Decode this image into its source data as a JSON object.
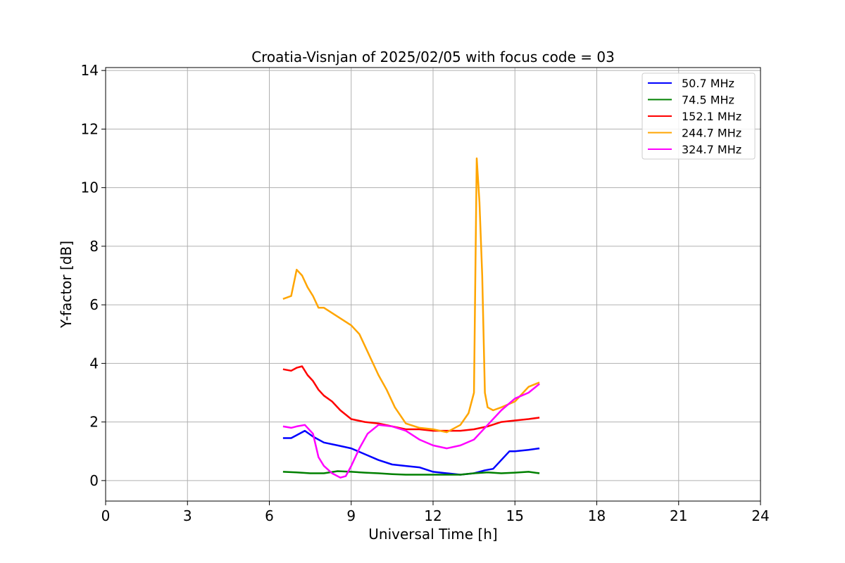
{
  "chart_data": {
    "type": "line",
    "title": "Croatia-Visnjan of 2025/02/05 with focus code = 03",
    "xlabel": "Universal Time [h]",
    "ylabel": "Y-factor [dB]",
    "xlim": [
      0,
      24
    ],
    "ylim": [
      -0.7,
      14.1
    ],
    "xticks": [
      0,
      3,
      6,
      9,
      12,
      15,
      18,
      21,
      24
    ],
    "yticks": [
      0,
      2,
      4,
      6,
      8,
      10,
      12,
      14
    ],
    "xtick_labels": [
      "0",
      "3",
      "6",
      "9",
      "12",
      "15",
      "18",
      "21",
      "24"
    ],
    "ytick_labels": [
      "0",
      "2",
      "4",
      "6",
      "8",
      "10",
      "12",
      "14"
    ],
    "grid": true,
    "legend_position": "top-right",
    "series": [
      {
        "name": " 50.7 MHz",
        "color": "#0000ff",
        "x": [
          6.5,
          6.8,
          7.0,
          7.3,
          7.6,
          8.0,
          8.5,
          9.0,
          9.5,
          10.0,
          10.5,
          11.0,
          11.5,
          12.0,
          12.5,
          13.0,
          13.5,
          13.9,
          14.2,
          14.5,
          14.8,
          15.0,
          15.5,
          15.9
        ],
        "y": [
          1.45,
          1.45,
          1.55,
          1.7,
          1.5,
          1.3,
          1.2,
          1.1,
          0.9,
          0.7,
          0.55,
          0.5,
          0.45,
          0.3,
          0.25,
          0.2,
          0.25,
          0.35,
          0.4,
          0.7,
          1.0,
          1.0,
          1.05,
          1.1
        ]
      },
      {
        "name": " 74.5 MHz",
        "color": "#008000",
        "x": [
          6.5,
          7.0,
          7.5,
          8.0,
          8.5,
          9.0,
          9.5,
          10.0,
          10.5,
          11.0,
          11.5,
          12.0,
          12.5,
          13.0,
          13.5,
          14.0,
          14.5,
          15.0,
          15.5,
          15.9
        ],
        "y": [
          0.3,
          0.28,
          0.25,
          0.25,
          0.32,
          0.3,
          0.27,
          0.25,
          0.22,
          0.2,
          0.2,
          0.2,
          0.2,
          0.2,
          0.25,
          0.28,
          0.25,
          0.27,
          0.3,
          0.25
        ]
      },
      {
        "name": " 152.1 MHz",
        "color": "#ff0000",
        "x": [
          6.5,
          6.8,
          7.0,
          7.2,
          7.4,
          7.6,
          7.8,
          8.0,
          8.3,
          8.6,
          9.0,
          9.5,
          10.0,
          10.5,
          11.0,
          11.5,
          12.0,
          12.5,
          13.0,
          13.5,
          14.0,
          14.5,
          15.0,
          15.5,
          15.9
        ],
        "y": [
          3.8,
          3.75,
          3.85,
          3.9,
          3.6,
          3.4,
          3.1,
          2.9,
          2.7,
          2.4,
          2.1,
          2.0,
          1.95,
          1.85,
          1.75,
          1.75,
          1.7,
          1.7,
          1.7,
          1.75,
          1.85,
          2.0,
          2.05,
          2.1,
          2.15
        ]
      },
      {
        "name": " 244.7 MHz",
        "color": "#ffa500",
        "x": [
          6.5,
          6.8,
          7.0,
          7.2,
          7.4,
          7.6,
          7.8,
          8.0,
          8.5,
          9.0,
          9.3,
          9.6,
          10.0,
          10.3,
          10.6,
          11.0,
          11.5,
          12.0,
          12.5,
          13.0,
          13.3,
          13.5,
          13.6,
          13.7,
          13.8,
          13.9,
          14.0,
          14.2,
          14.5,
          15.0,
          15.3,
          15.5,
          15.9
        ],
        "y": [
          6.2,
          6.3,
          7.2,
          7.0,
          6.6,
          6.3,
          5.9,
          5.9,
          5.6,
          5.3,
          5.0,
          4.4,
          3.6,
          3.1,
          2.5,
          1.95,
          1.8,
          1.75,
          1.65,
          1.9,
          2.3,
          3.0,
          11.0,
          9.5,
          7.0,
          3.0,
          2.5,
          2.4,
          2.5,
          2.7,
          3.0,
          3.2,
          3.35
        ]
      },
      {
        "name": " 324.7 MHz",
        "color": "#ff00ff",
        "x": [
          6.5,
          6.8,
          7.0,
          7.3,
          7.6,
          7.8,
          8.0,
          8.3,
          8.6,
          8.8,
          9.0,
          9.3,
          9.6,
          10.0,
          10.5,
          11.0,
          11.5,
          12.0,
          12.5,
          13.0,
          13.5,
          14.0,
          14.5,
          15.0,
          15.5,
          15.9
        ],
        "y": [
          1.85,
          1.8,
          1.85,
          1.9,
          1.6,
          0.8,
          0.5,
          0.25,
          0.1,
          0.15,
          0.5,
          1.1,
          1.6,
          1.9,
          1.85,
          1.7,
          1.4,
          1.2,
          1.1,
          1.2,
          1.4,
          1.9,
          2.4,
          2.8,
          3.0,
          3.3
        ]
      }
    ]
  }
}
